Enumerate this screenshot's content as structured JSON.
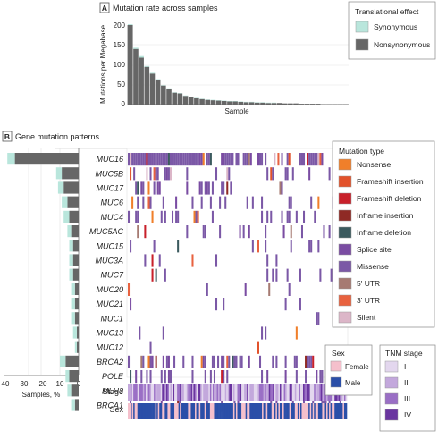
{
  "panel_a": {
    "badge": "A",
    "title": "Mutation rate across samples",
    "ylabel": "Mutations per Megabase",
    "xlabel": "Sample",
    "yticks": [
      "200",
      "150",
      "100",
      "50",
      "0"
    ],
    "legend": {
      "title": "Translational effect",
      "items": [
        {
          "label": "Synonymous",
          "color": "#b9e6dc"
        },
        {
          "label": "Nonsynonymous",
          "color": "#666666"
        }
      ]
    }
  },
  "panel_b": {
    "badge": "B",
    "title": "Gene mutation patterns",
    "xlabel": "Samples, %",
    "xticks": [
      "40",
      "30",
      "20",
      "10",
      "0"
    ],
    "track_labels": {
      "stage": "Stage",
      "sex": "Sex"
    },
    "mutation_legend": {
      "title": "Mutation type",
      "items": [
        {
          "label": "Nonsense",
          "color": "#f07f2a"
        },
        {
          "label": "Frameshift insertion",
          "color": "#e2522b"
        },
        {
          "label": "Frameshift deletion",
          "color": "#c8202a"
        },
        {
          "label": "Inframe insertion",
          "color": "#8f2a25"
        },
        {
          "label": "Inframe deletion",
          "color": "#3b5a5e"
        },
        {
          "label": "Splice site",
          "color": "#7a4ca2"
        },
        {
          "label": "Missense",
          "color": "#7b58a6"
        },
        {
          "label": "5' UTR",
          "color": "#a67a72"
        },
        {
          "label": "3' UTR",
          "color": "#e8623f"
        },
        {
          "label": "Silent",
          "color": "#dcb6c8"
        }
      ]
    },
    "sex_legend": {
      "title": "Sex",
      "items": [
        {
          "label": "Female",
          "color": "#f5c0cc"
        },
        {
          "label": "Male",
          "color": "#2b4fa8"
        }
      ]
    },
    "tnm_legend": {
      "title": "TNM stage",
      "items": [
        {
          "label": "I",
          "color": "#e3d7ee"
        },
        {
          "label": "II",
          "color": "#c3a8dc"
        },
        {
          "label": "III",
          "color": "#9a6fc5"
        },
        {
          "label": "IV",
          "color": "#6a35a0"
        }
      ]
    }
  },
  "chart_data": [
    {
      "type": "bar",
      "title": "Mutation rate across samples",
      "xlabel": "Sample",
      "ylabel": "Mutations per Megabase",
      "ylim": [
        0,
        200
      ],
      "series": [
        {
          "name": "Synonymous",
          "values": [
            2,
            3,
            4,
            2,
            2,
            2,
            1,
            1,
            1,
            1,
            1,
            1,
            1,
            1,
            1,
            1,
            1,
            1,
            1,
            1,
            1,
            1,
            1,
            1,
            1,
            1,
            1,
            0,
            0,
            0,
            0,
            0,
            0,
            0,
            0,
            0,
            0,
            0,
            0,
            0
          ]
        },
        {
          "name": "Nonsynonymous",
          "values": [
            200,
            140,
            118,
            95,
            78,
            62,
            48,
            40,
            30,
            28,
            22,
            18,
            16,
            14,
            12,
            11,
            10,
            9,
            8,
            8,
            7,
            6,
            6,
            5,
            5,
            4,
            4,
            4,
            3,
            3,
            3,
            2,
            2,
            2,
            2,
            1,
            1,
            1,
            1,
            1
          ]
        }
      ],
      "legend": "top-right"
    },
    {
      "type": "bar",
      "xlabel": "Samples, %",
      "xlim": [
        40,
        0
      ],
      "categories": [
        "MUC16",
        "MUC5B",
        "MUC17",
        "MUC6",
        "MUC4",
        "MUC5AC",
        "MUC15",
        "MUC3A",
        "MUC7",
        "MUC20",
        "MUC21",
        "MUC1",
        "MUC13",
        "MUC12",
        "BRCA2",
        "POLE",
        "MLH3",
        "BRCA1"
      ],
      "series": [
        {
          "name": "Synonymous",
          "values": [
            4,
            3,
            3,
            3,
            3,
            2,
            2,
            2,
            2,
            2,
            2,
            2,
            2,
            1,
            3,
            2,
            2,
            2
          ]
        },
        {
          "name": "Nonsynonymous",
          "values": [
            34,
            9,
            8,
            6,
            5,
            4,
            3,
            3,
            3,
            2,
            2,
            2,
            1,
            1,
            7,
            5,
            4,
            2
          ]
        }
      ]
    }
  ]
}
